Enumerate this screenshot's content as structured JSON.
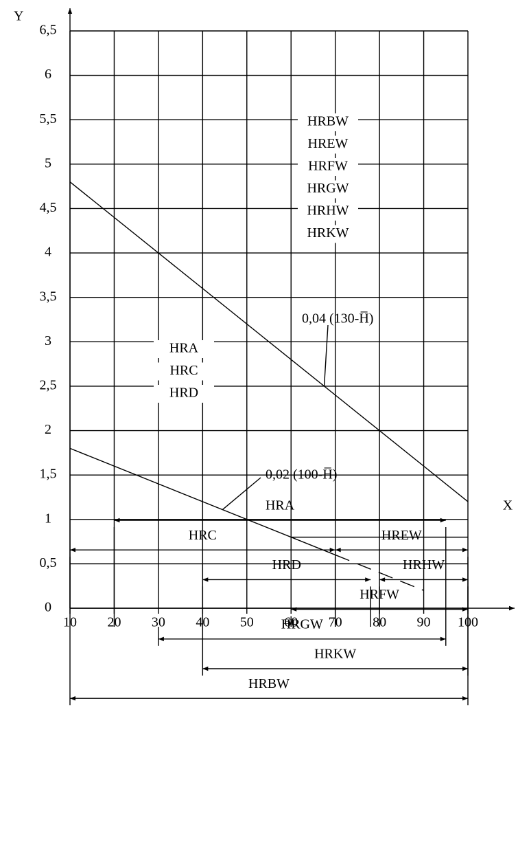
{
  "chart_data": {
    "type": "line",
    "x_label": "X",
    "y_label": "Y",
    "xlim": [
      10,
      100
    ],
    "ylim": [
      0,
      6.5
    ],
    "xticks": [
      10,
      20,
      30,
      40,
      50,
      60,
      70,
      80,
      90,
      100
    ],
    "yticks": [
      0,
      {
        "value": 0.5,
        "label": "0,5"
      },
      1,
      {
        "value": 1.5,
        "label": "1,5"
      },
      2,
      {
        "value": 2.5,
        "label": "2,5"
      },
      3,
      {
        "value": 3.5,
        "label": "3,5"
      },
      4,
      {
        "value": 4.5,
        "label": "4,5"
      },
      5,
      {
        "value": 5.5,
        "label": "5,5"
      },
      6,
      {
        "value": 6.5,
        "label": "6,5"
      }
    ],
    "grid": true,
    "color": "#000000",
    "series": [
      {
        "name": "0,04 (130-H̅)",
        "x": [
          10,
          100
        ],
        "values": [
          4.8,
          1.2
        ]
      },
      {
        "name": "0,02 (100-H̅)",
        "x": [
          10,
          70
        ],
        "values": [
          1.8,
          0.6
        ]
      },
      {
        "style": "dashed",
        "x": [
          70,
          90
        ],
        "values": [
          0.6,
          0.2
        ]
      }
    ],
    "extra_grid": {
      "x": [
        60,
        100
      ],
      "y": 0.8
    },
    "groups": [
      [
        "HRBW",
        "HREW",
        "HRFW",
        "HRGW",
        "HRHW",
        "HRKW"
      ],
      [
        "HRA",
        "HRC",
        "HRD"
      ]
    ],
    "ranges": [
      {
        "label": "HRA",
        "from": 20,
        "to": 95
      },
      {
        "label": "HRC",
        "from": 10,
        "to": 70
      },
      {
        "label": "HREW",
        "from": 70,
        "to": 100
      },
      {
        "label": "HRD",
        "from": 40,
        "to": 78
      },
      {
        "label": "HRHW",
        "from": 80,
        "to": 100
      },
      {
        "label": "HRFW",
        "from": 60,
        "to": 100
      },
      {
        "label": "HRGW",
        "from": 30,
        "to": 95
      },
      {
        "label": "HRKW",
        "from": 40,
        "to": 100
      },
      {
        "label": "HRBW",
        "from": 10,
        "to": 100
      }
    ]
  }
}
